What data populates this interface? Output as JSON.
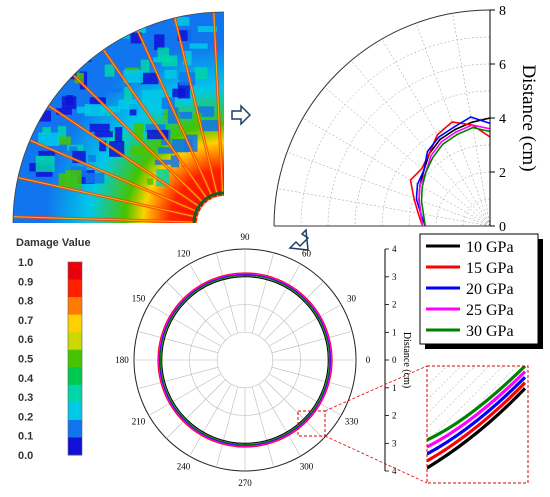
{
  "panel_damage_map": {
    "colorbar": {
      "title": "Damage Value",
      "ticks": [
        "1.0",
        "0.9",
        "0.8",
        "0.7",
        "0.6",
        "0.5",
        "0.4",
        "0.3",
        "0.2",
        "0.1",
        "0.0"
      ],
      "colors": [
        "#e8000b",
        "#ff2000",
        "#ff7a00",
        "#ffd000",
        "#cdd800",
        "#46c400",
        "#00c94f",
        "#00d6a8",
        "#00c9e8",
        "#1075ee",
        "#1010d8"
      ]
    }
  },
  "chart_data": [
    {
      "type": "line",
      "subtype": "polar-quadrant",
      "ylabel": "Distance (cm)",
      "yticks": [
        "0",
        "2",
        "4",
        "6",
        "8"
      ],
      "ylim": [
        0,
        8
      ],
      "angle_range_deg": [
        0,
        90
      ],
      "grid": true,
      "series": [
        {
          "color": "#000000",
          "angle_deg": [
            0,
            10,
            20,
            30,
            40,
            50,
            60,
            70,
            80,
            90
          ],
          "r": [
            2.5,
            2.6,
            2.8,
            3.0,
            3.2,
            3.5,
            3.7,
            3.8,
            3.9,
            4.0
          ]
        },
        {
          "color": "#ff0000",
          "angle_deg": [
            0,
            10,
            20,
            30,
            40,
            50,
            60,
            70,
            80,
            90
          ],
          "r": [
            2.5,
            2.7,
            3.0,
            3.4,
            3.3,
            3.5,
            3.9,
            4.1,
            3.8,
            3.3
          ]
        },
        {
          "color": "#0000ff",
          "angle_deg": [
            0,
            10,
            20,
            30,
            40,
            50,
            60,
            70,
            80,
            90
          ],
          "r": [
            2.4,
            2.6,
            2.9,
            3.1,
            3.2,
            3.6,
            3.8,
            3.9,
            4.1,
            3.8
          ]
        },
        {
          "color": "#ff00ff",
          "angle_deg": [
            0,
            10,
            20,
            30,
            40,
            50,
            60,
            70,
            80,
            90
          ],
          "r": [
            2.5,
            2.6,
            2.8,
            3.0,
            3.1,
            3.4,
            3.6,
            3.7,
            3.8,
            3.6
          ]
        },
        {
          "color": "#008000",
          "angle_deg": [
            0,
            10,
            20,
            30,
            40,
            50,
            60,
            70,
            80,
            90
          ],
          "r": [
            2.4,
            2.5,
            2.7,
            2.9,
            3.1,
            3.3,
            3.5,
            3.6,
            3.7,
            3.5
          ]
        }
      ]
    },
    {
      "type": "line",
      "subtype": "polar",
      "ylabel": "Distance (cm)",
      "angle_ticks": [
        "0",
        "30",
        "60",
        "90",
        "120",
        "150",
        "180",
        "210",
        "240",
        "270",
        "300",
        "330"
      ],
      "yticks": [
        "4",
        "3",
        "2",
        "1",
        "0",
        "1",
        "2",
        "3",
        "4"
      ],
      "rlim": [
        0,
        4
      ],
      "grid": true,
      "legend": {
        "position": "right"
      },
      "series": [
        {
          "name": "10 GPa",
          "color": "#000000",
          "r": 3.0
        },
        {
          "name": "15 GPa",
          "color": "#ff0000",
          "r": 3.14
        },
        {
          "name": "20 GPa",
          "color": "#0000ff",
          "r": 3.08
        },
        {
          "name": "25 GPa",
          "color": "#ff00ff",
          "r": 3.11
        },
        {
          "name": "30 GPa",
          "color": "#008000",
          "r": 3.05
        }
      ]
    }
  ]
}
